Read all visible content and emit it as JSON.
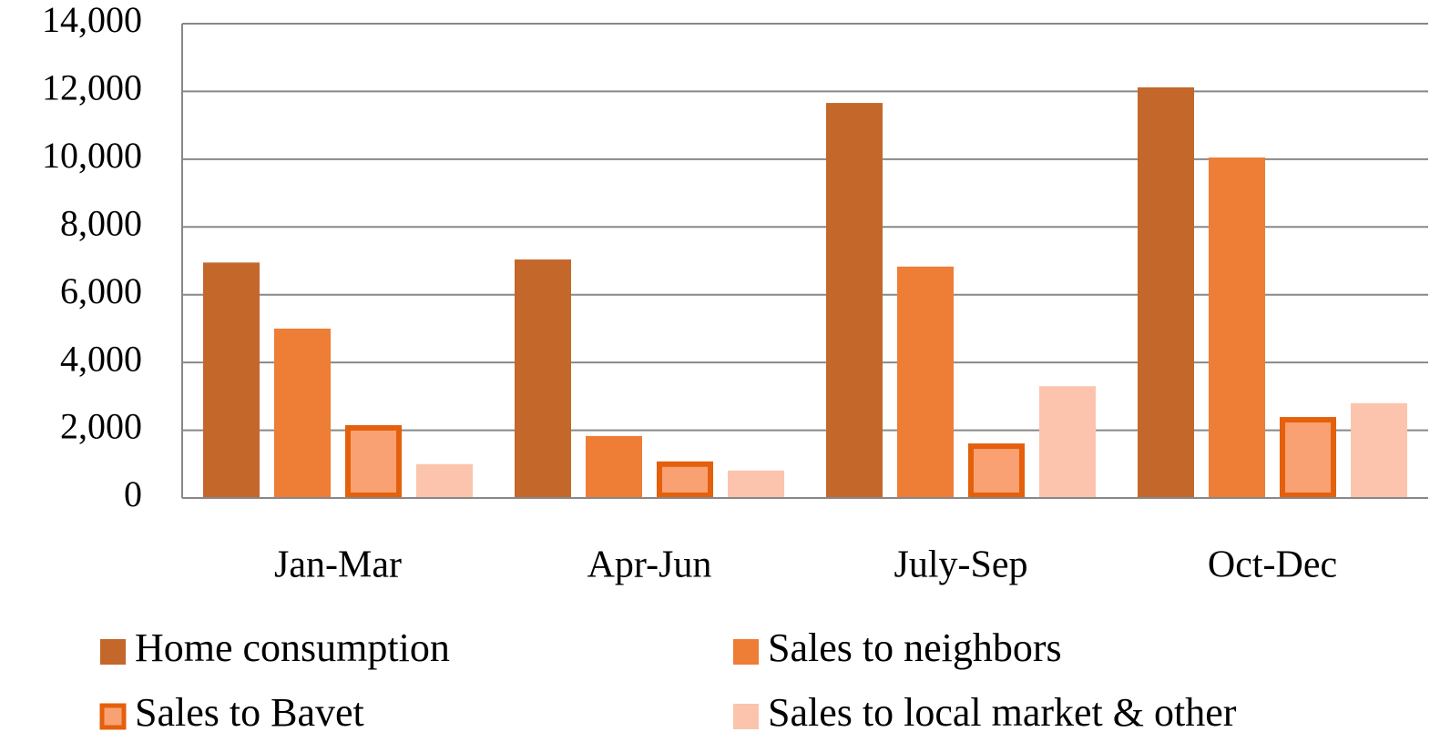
{
  "chart_data": {
    "type": "bar",
    "categories": [
      "Jan-Mar",
      "Apr-Jun",
      "July-Sep",
      "Oct-Dec"
    ],
    "series": [
      {
        "name": "Home consumption",
        "color": "#c4672b",
        "values": [
          6950,
          7040,
          11660,
          12120
        ]
      },
      {
        "name": "Sales to neighbors",
        "color": "#ee7d36",
        "values": [
          5000,
          1830,
          6830,
          10050
        ]
      },
      {
        "name": "Sales to Bavet",
        "color": "#f9a172",
        "edgecolor": "#e4600c",
        "values": [
          2150,
          1080,
          1610,
          2390
        ]
      },
      {
        "name": "Sales to local market & other",
        "color": "#fcc4ad",
        "values": [
          1000,
          810,
          3300,
          2800
        ]
      }
    ],
    "ylim": [
      0,
      14000
    ],
    "yticks": [
      0,
      {
        "value": 2000,
        "label": "2,000"
      },
      {
        "value": 4000,
        "label": "4,000"
      },
      {
        "value": 6000,
        "label": "6,000"
      },
      {
        "value": 8000,
        "label": "8,000"
      },
      {
        "value": 10000,
        "label": "10,000"
      },
      {
        "value": 12000,
        "label": "12,000"
      },
      {
        "value": 14000,
        "label": "14,000"
      }
    ],
    "grid": true,
    "legend": "bottom"
  }
}
